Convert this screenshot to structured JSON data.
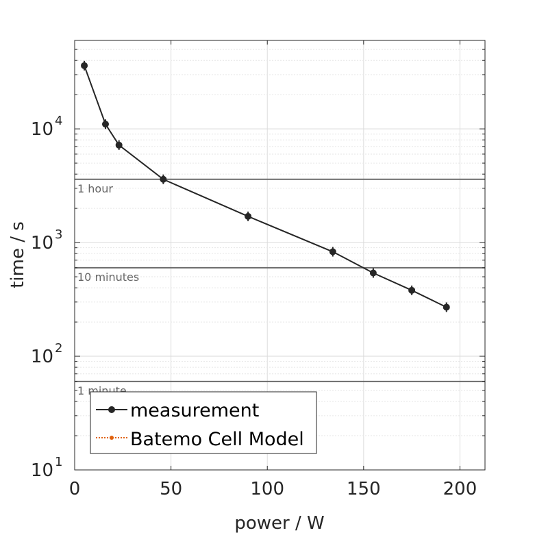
{
  "chart_data": {
    "type": "line",
    "xlabel": "power / W",
    "ylabel": "time / s",
    "xlim": [
      0,
      213
    ],
    "ylim": [
      10,
      60000
    ],
    "yscale": "log",
    "grid": true,
    "legend_position": "bottom-left",
    "x_ticks": [
      "0",
      "50",
      "100",
      "150",
      "200"
    ],
    "x_tick_values": [
      0,
      50,
      100,
      150,
      200
    ],
    "y_tick_values": [
      10,
      100,
      1000,
      10000
    ],
    "y_tick_base": "10",
    "y_tick_exponents": [
      "1",
      "2",
      "3",
      "4"
    ],
    "reference_lines": [
      {
        "label": "1 hour",
        "value": 3600
      },
      {
        "label": "10 minutes",
        "value": 600
      },
      {
        "label": "1 minute",
        "value": 60
      }
    ],
    "series": [
      {
        "name": "measurement",
        "color": "#262626",
        "style": "solid",
        "x": [
          5,
          16,
          23,
          46,
          90,
          134,
          155,
          175,
          193
        ],
        "y": [
          36000,
          11000,
          7200,
          3600,
          1700,
          830,
          540,
          380,
          270
        ]
      },
      {
        "name": "Batemo Cell Model",
        "color": "#e0620e",
        "style": "dotted",
        "x": [],
        "y": []
      }
    ]
  }
}
